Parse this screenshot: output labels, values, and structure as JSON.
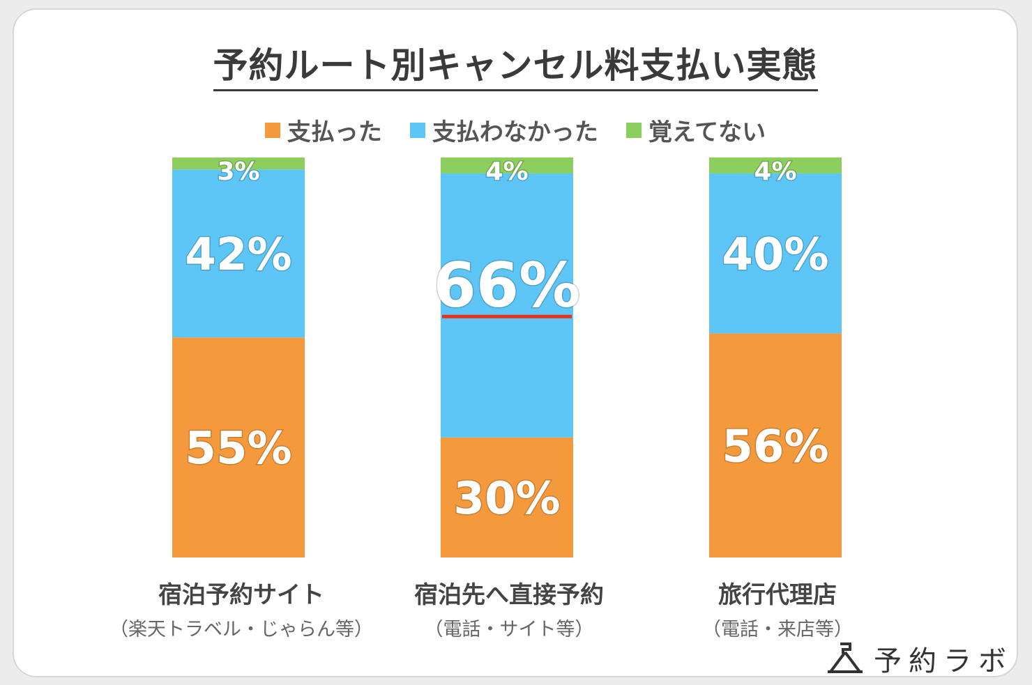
{
  "title": "予約ルート別キャンセル料支払い実態",
  "legend": [
    {
      "label": "支払った",
      "color": "#f59a3c"
    },
    {
      "label": "支払わなかった",
      "color": "#5ec6f7"
    },
    {
      "label": "覚えてない",
      "color": "#8ccf5e"
    }
  ],
  "chart_data": {
    "type": "bar",
    "stacked": true,
    "unit": "%",
    "ylim": [
      0,
      100
    ],
    "categories": [
      {
        "name": "宿泊予約サイト",
        "sub": "（楽天トラベル・じゃらん等）"
      },
      {
        "name": "宿泊先へ直接予約",
        "sub": "（電話・サイト等）"
      },
      {
        "name": "旅行代理店",
        "sub": "（電話・来店等）"
      }
    ],
    "series": [
      {
        "name": "支払った",
        "color": "#f59a3c",
        "values": [
          55,
          30,
          56
        ],
        "labels": [
          "55%",
          "30%",
          "56%"
        ]
      },
      {
        "name": "支払わなかった",
        "color": "#5ec6f7",
        "values": [
          42,
          66,
          40
        ],
        "labels": [
          "42%",
          "66%",
          "40%"
        ]
      },
      {
        "name": "覚えてない",
        "color": "#8ccf5e",
        "values": [
          3,
          4,
          4
        ],
        "labels": [
          "3%",
          "4%",
          "4%"
        ]
      }
    ],
    "highlight": {
      "category_index": 1,
      "series_index": 1,
      "color": "#e8321e"
    }
  },
  "logo": {
    "text": "予約ラボ",
    "icon": "reservation-lab-logo-icon"
  }
}
